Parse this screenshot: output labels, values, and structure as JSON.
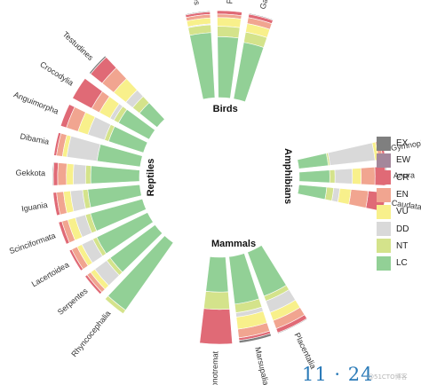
{
  "chart_data": {
    "type": "bar",
    "layout": "radial stacked bar",
    "categories_order": [
      "EX",
      "EW",
      "CR",
      "EN",
      "VU",
      "DD",
      "NT",
      "LC"
    ],
    "colors": {
      "EX": "#7f7f7f",
      "EW": "#a4879b",
      "CR": "#e06a76",
      "EN": "#f1a590",
      "VU": "#f8f08b",
      "DD": "#d9d9d9",
      "NT": "#d4e38b",
      "LC": "#92d096"
    },
    "legend": {
      "position": "right",
      "labels": [
        "EX",
        "EW",
        "CR",
        "EN",
        "VU",
        "DD",
        "NT",
        "LC"
      ]
    },
    "groups": [
      {
        "name": "Reptiles",
        "bars": [
          {
            "label": "Testudines",
            "values": {
              "EX": 0.02,
              "EW": 0.0,
              "CR": 0.17,
              "EN": 0.17,
              "VU": 0.18,
              "DD": 0.1,
              "NT": 0.1,
              "LC": 0.26
            }
          },
          {
            "label": "Crocodylia",
            "values": {
              "EX": 0.0,
              "EW": 0.0,
              "CR": 0.25,
              "EN": 0.1,
              "VU": 0.14,
              "DD": 0.05,
              "NT": 0.06,
              "LC": 0.4
            }
          },
          {
            "label": "Anguimorpha",
            "values": {
              "EX": 0.0,
              "EW": 0.0,
              "CR": 0.07,
              "EN": 0.14,
              "VU": 0.12,
              "DD": 0.2,
              "NT": 0.05,
              "LC": 0.42
            }
          },
          {
            "label": "Dibamia",
            "values": {
              "EX": 0.0,
              "EW": 0.0,
              "CR": 0.03,
              "EN": 0.07,
              "VU": 0.05,
              "DD": 0.35,
              "NT": 0.0,
              "LC": 0.5
            }
          },
          {
            "label": "Gekkota",
            "values": {
              "EX": 0.01,
              "EW": 0.0,
              "CR": 0.05,
              "EN": 0.1,
              "VU": 0.08,
              "DD": 0.14,
              "NT": 0.06,
              "LC": 0.56
            }
          },
          {
            "label": "Iguania",
            "values": {
              "EX": 0.0,
              "EW": 0.0,
              "CR": 0.04,
              "EN": 0.08,
              "VU": 0.08,
              "DD": 0.14,
              "NT": 0.06,
              "LC": 0.6
            }
          },
          {
            "label": "Scinciformata",
            "values": {
              "EX": 0.0,
              "EW": 0.0,
              "CR": 0.04,
              "EN": 0.07,
              "VU": 0.09,
              "DD": 0.12,
              "NT": 0.06,
              "LC": 0.62
            }
          },
          {
            "label": "Lacertoidea",
            "values": {
              "EX": 0.0,
              "EW": 0.0,
              "CR": 0.03,
              "EN": 0.07,
              "VU": 0.06,
              "DD": 0.14,
              "NT": 0.05,
              "LC": 0.65
            }
          },
          {
            "label": "Serpentes",
            "values": {
              "EX": 0.0,
              "EW": 0.0,
              "CR": 0.03,
              "EN": 0.05,
              "VU": 0.06,
              "DD": 0.17,
              "NT": 0.05,
              "LC": 0.64
            }
          },
          {
            "label": "Rhyncocephalia",
            "values": {
              "EX": 0.0,
              "EW": 0.0,
              "CR": 0.0,
              "EN": 0.0,
              "VU": 0.0,
              "DD": 0.0,
              "NT": 0.05,
              "LC": 0.95
            }
          }
        ]
      },
      {
        "name": "Birds",
        "bars": [
          {
            "label": "Neoaves",
            "values": {
              "EX": 0.01,
              "EW": 0.0,
              "CR": 0.03,
              "EN": 0.04,
              "VU": 0.07,
              "DD": 0.01,
              "NT": 0.09,
              "LC": 0.75
            }
          },
          {
            "label": "Paleognathae",
            "values": {
              "EX": 0.0,
              "EW": 0.0,
              "CR": 0.04,
              "EN": 0.04,
              "VU": 0.1,
              "DD": 0.0,
              "NT": 0.12,
              "LC": 0.7
            }
          },
          {
            "label": "Galloanserae",
            "values": {
              "EX": 0.01,
              "EW": 0.0,
              "CR": 0.04,
              "EN": 0.07,
              "VU": 0.1,
              "DD": 0.0,
              "NT": 0.12,
              "LC": 0.66
            }
          }
        ]
      },
      {
        "name": "Amphibians",
        "bars": [
          {
            "label": "Gymnophiona",
            "values": {
              "EX": 0.0,
              "EW": 0.0,
              "CR": 0.03,
              "EN": 0.05,
              "VU": 0.04,
              "DD": 0.52,
              "NT": 0.02,
              "LC": 0.34
            }
          },
          {
            "label": "Anura",
            "values": {
              "EX": 0.01,
              "EW": 0.0,
              "CR": 0.12,
              "EN": 0.16,
              "VU": 0.1,
              "DD": 0.2,
              "NT": 0.06,
              "LC": 0.35
            }
          },
          {
            "label": "Caudata",
            "values": {
              "EX": 0.0,
              "EW": 0.0,
              "CR": 0.2,
              "EN": 0.2,
              "VU": 0.13,
              "DD": 0.07,
              "NT": 0.08,
              "LC": 0.32
            }
          }
        ]
      },
      {
        "name": "Mammals",
        "bars": [
          {
            "label": "Placentalia",
            "values": {
              "EX": 0.01,
              "EW": 0.0,
              "CR": 0.05,
              "EN": 0.1,
              "VU": 0.1,
              "DD": 0.14,
              "NT": 0.06,
              "LC": 0.54
            }
          },
          {
            "label": "Marsupalia",
            "values": {
              "EX": 0.03,
              "EW": 0.0,
              "CR": 0.03,
              "EN": 0.1,
              "VU": 0.14,
              "DD": 0.05,
              "NT": 0.1,
              "LC": 0.55
            }
          },
          {
            "label": "Monotremat",
            "values": {
              "EX": 0.0,
              "EW": 0.0,
              "CR": 0.4,
              "EN": 0.0,
              "VU": 0.0,
              "DD": 0.0,
              "NT": 0.2,
              "LC": 0.4
            }
          }
        ]
      }
    ]
  },
  "footer": {
    "time": "11 · 24",
    "watermark": "@51CTO博客"
  }
}
